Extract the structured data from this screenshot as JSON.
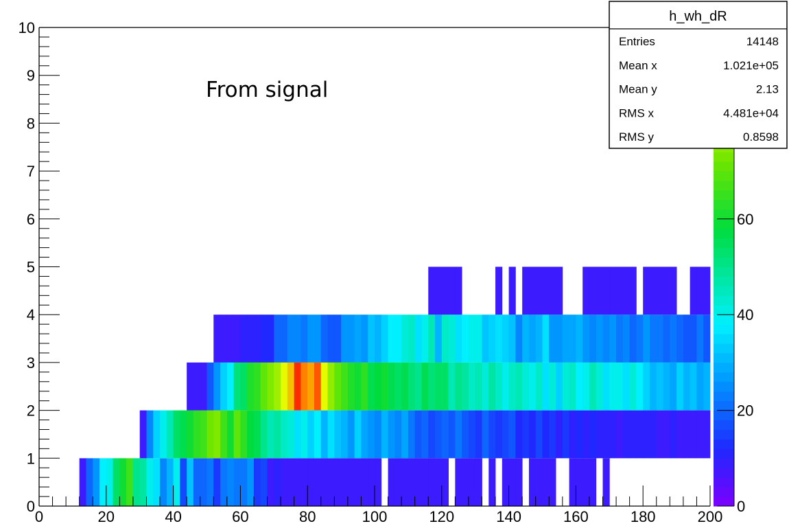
{
  "chart_data": {
    "type": "heatmap",
    "annotation": "From signal",
    "x_bin_width": 2,
    "y_bin_width": 1,
    "xlim": [
      0,
      200
    ],
    "ylim": [
      0,
      10
    ],
    "zlim": [
      0,
      100
    ],
    "x_ticks": [
      "0",
      "20",
      "40",
      "60",
      "80",
      "100",
      "120",
      "140",
      "160",
      "180",
      "200"
    ],
    "y_ticks": [
      "0",
      "1",
      "2",
      "3",
      "4",
      "5",
      "6",
      "7",
      "8",
      "9",
      "10"
    ],
    "z_ticks": [
      "0",
      "20",
      "40",
      "60",
      "80"
    ],
    "stats": {
      "title": "h_wh_dR",
      "rows": [
        {
          "label": "Entries",
          "value": "14148"
        },
        {
          "label": "Mean x",
          "value": "1.021e+05"
        },
        {
          "label": "Mean y",
          "value": "2.13"
        },
        {
          "label": "RMS x",
          "value": "4.481e+04"
        },
        {
          "label": "RMS y",
          "value": "0.8598"
        }
      ]
    },
    "rows": [
      {
        "y0": 0,
        "x0": 12,
        "values": [
          8,
          20,
          26,
          38,
          40,
          54,
          60,
          66,
          50,
          48,
          40,
          36,
          24,
          30,
          40,
          16,
          32,
          20,
          20,
          22,
          14,
          22,
          24,
          22,
          22,
          26,
          14,
          16,
          8,
          10,
          8,
          8,
          8,
          8,
          8,
          8,
          8,
          8,
          8,
          8,
          8,
          8,
          8,
          8,
          8,
          0,
          8,
          8,
          8,
          8,
          8,
          8,
          8,
          8,
          8,
          0,
          8,
          8,
          8,
          8,
          0,
          8,
          0,
          8,
          8,
          8,
          0,
          8,
          8,
          8,
          8,
          0,
          0,
          8,
          8,
          8,
          8,
          0,
          8
        ]
      },
      {
        "y0": 1,
        "x0": 30,
        "values": [
          8,
          24,
          34,
          40,
          46,
          54,
          56,
          60,
          64,
          66,
          72,
          74,
          66,
          60,
          70,
          64,
          58,
          56,
          50,
          46,
          48,
          44,
          42,
          36,
          40,
          34,
          38,
          30,
          36,
          32,
          30,
          26,
          34,
          28,
          26,
          24,
          30,
          26,
          24,
          28,
          22,
          18,
          20,
          16,
          18,
          20,
          18,
          22,
          18,
          16,
          14,
          20,
          16,
          14,
          16,
          18,
          12,
          14,
          12,
          16,
          12,
          14,
          10,
          14,
          10,
          12,
          10,
          12,
          10,
          10,
          10,
          8,
          10,
          10,
          10,
          10,
          10,
          8,
          8,
          10,
          8,
          8,
          8,
          8,
          8
        ]
      },
      {
        "y0": 2,
        "x0": 44,
        "values": [
          8,
          8,
          8,
          18,
          26,
          34,
          38,
          52,
          54,
          62,
          64,
          70,
          74,
          78,
          86,
          90,
          98,
          94,
          92,
          96,
          86,
          76,
          70,
          66,
          62,
          60,
          64,
          56,
          58,
          60,
          56,
          54,
          56,
          52,
          50,
          56,
          52,
          54,
          54,
          46,
          50,
          48,
          44,
          46,
          42,
          48,
          44,
          40,
          44,
          46,
          42,
          40,
          44,
          36,
          42,
          34,
          42,
          44,
          38,
          40,
          46,
          42,
          36,
          40,
          40,
          36,
          42,
          38,
          34,
          30,
          32,
          30,
          28,
          34,
          30,
          32,
          28,
          30,
          28
        ]
      },
      {
        "y0": 3,
        "x0": 52,
        "values": [
          8,
          8,
          8,
          8,
          10,
          10,
          10,
          12,
          12,
          20,
          20,
          24,
          24,
          22,
          26,
          26,
          20,
          18,
          18,
          26,
          26,
          28,
          26,
          32,
          30,
          34,
          38,
          38,
          42,
          44,
          36,
          40,
          46,
          30,
          44,
          42,
          36,
          38,
          40,
          40,
          32,
          34,
          36,
          34,
          32,
          24,
          30,
          28,
          30,
          36,
          26,
          26,
          28,
          28,
          30,
          26,
          24,
          26,
          24,
          26,
          22,
          24,
          20,
          22,
          26,
          22,
          22,
          20,
          22,
          20,
          18,
          18,
          22,
          18,
          18,
          20,
          18,
          22,
          18,
          18,
          14,
          18,
          16,
          20,
          18,
          16
        ]
      },
      {
        "y0": 4,
        "x0": 116,
        "values": [
          8,
          8,
          8,
          8,
          8,
          0,
          0,
          0,
          0,
          0,
          0,
          0,
          0,
          0,
          0,
          0,
          0,
          0,
          0,
          0,
          0,
          0,
          0,
          0,
          0,
          0,
          0,
          0,
          0,
          0,
          0,
          0,
          0,
          0,
          0,
          0,
          0,
          0,
          0,
          0,
          0,
          0,
          0,
          0,
          0,
          0,
          0,
          0,
          0,
          0,
          0,
          0,
          0,
          0,
          0,
          0,
          0,
          0,
          0,
          0,
          0,
          0,
          0,
          0
        ]
      },
      {
        "y0": 4,
        "x0": 136,
        "values": [
          8,
          0,
          8,
          0,
          8,
          8,
          8,
          8,
          8,
          8,
          0,
          0,
          0,
          8,
          8,
          8,
          8,
          8,
          8,
          8,
          8,
          0,
          8,
          8,
          8,
          8,
          8,
          0,
          0,
          8,
          8,
          8,
          8,
          8,
          8,
          8
        ]
      }
    ]
  }
}
